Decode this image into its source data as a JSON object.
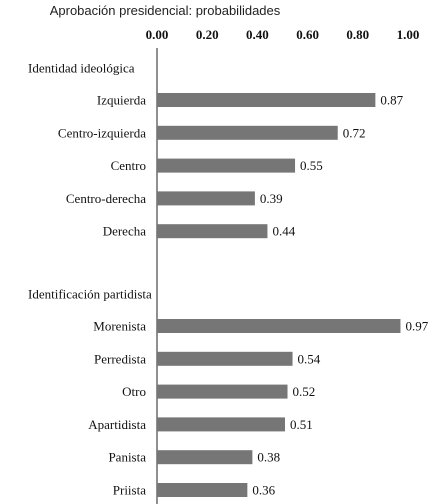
{
  "chart_data": {
    "type": "bar",
    "orientation": "horizontal",
    "title": "Aprobación presidencial: probabilidades",
    "xlim": [
      0,
      1
    ],
    "x_ticks": [
      "0.00",
      "0.20",
      "0.40",
      "0.60",
      "0.80",
      "1.00"
    ],
    "x_axis_position": "top",
    "grid": false,
    "groups": [
      {
        "label": "Identidad ideológica",
        "categories": [
          "Izquierda",
          "Centro-izquierda",
          "Centro",
          "Centro-derecha",
          "Derecha"
        ],
        "values": [
          0.87,
          0.72,
          0.55,
          0.39,
          0.44
        ],
        "value_labels": [
          "0.87",
          "0.72",
          "0.55",
          "0.39",
          "0.44"
        ]
      },
      {
        "label": "Identificación partidista",
        "categories": [
          "Morenista",
          "Perredista",
          "Otro",
          "Apartidista",
          "Panista",
          "Priista"
        ],
        "values": [
          0.97,
          0.54,
          0.52,
          0.51,
          0.38,
          0.36
        ],
        "value_labels": [
          "0.97",
          "0.54",
          "0.52",
          "0.51",
          "0.38",
          "0.36"
        ]
      }
    ],
    "bar_color": "#767676"
  }
}
